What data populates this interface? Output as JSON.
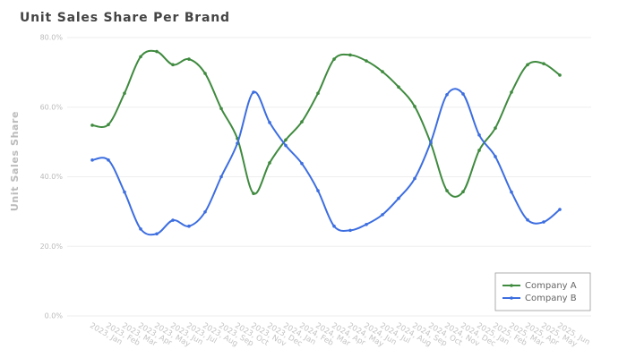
{
  "chart_data": {
    "type": "line",
    "title": "Unit Sales Share Per Brand",
    "y_label": "Unit Sales Share",
    "categories": [
      "2023, Jan",
      "2023, Feb",
      "2023, Mar",
      "2023, Apr",
      "2023, May",
      "2023, Jun",
      "2023, Jul",
      "2023, Aug",
      "2023, Sep",
      "2023, Oct",
      "2023, Nov",
      "2023, Dec",
      "2024, Jan",
      "2024, Feb",
      "2024, Mar",
      "2024, Apr",
      "2024, May",
      "2024, Jun",
      "2024, Jul",
      "2024, Aug",
      "2024, Sep",
      "2024, Oct",
      "2024, Nov",
      "2024, Dec",
      "2025, Jan",
      "2025, Feb",
      "2025, Mar",
      "2025, Apr",
      "2025, May",
      "2025, Jun"
    ],
    "series": [
      {
        "name": "Company A",
        "color": "#3f8a3f",
        "values": [
          54.8,
          55,
          64,
          74.5,
          76,
          72.2,
          73.8,
          69.7,
          59.6,
          51,
          35.2,
          44,
          50.6,
          55.8,
          64,
          73.8,
          75,
          73.3,
          70.2,
          65.8,
          60.2,
          49.6,
          36,
          35.7,
          47.6,
          54,
          64.3,
          72.2,
          72.5,
          69.2
        ]
      },
      {
        "name": "Company B",
        "color": "#3d6ee0",
        "values": [
          44.8,
          44.8,
          35.6,
          25,
          23.6,
          27.5,
          25.8,
          29.9,
          40,
          49.6,
          64.3,
          55.6,
          49,
          43.8,
          36,
          25.8,
          24.6,
          26.3,
          29.1,
          33.8,
          39.5,
          50,
          63.6,
          63.8,
          52,
          45.8,
          35.6,
          27.6,
          27,
          30.6
        ]
      }
    ],
    "ylim": [
      0,
      80
    ],
    "yticks": [
      {
        "value": 0,
        "label": "0.0%"
      },
      {
        "value": 20,
        "label": "20.0%"
      },
      {
        "value": 40,
        "label": "40.0%"
      },
      {
        "value": 60,
        "label": "60.0%"
      },
      {
        "value": 80,
        "label": "80.0%"
      }
    ],
    "grid": true,
    "legend": "lower right"
  }
}
